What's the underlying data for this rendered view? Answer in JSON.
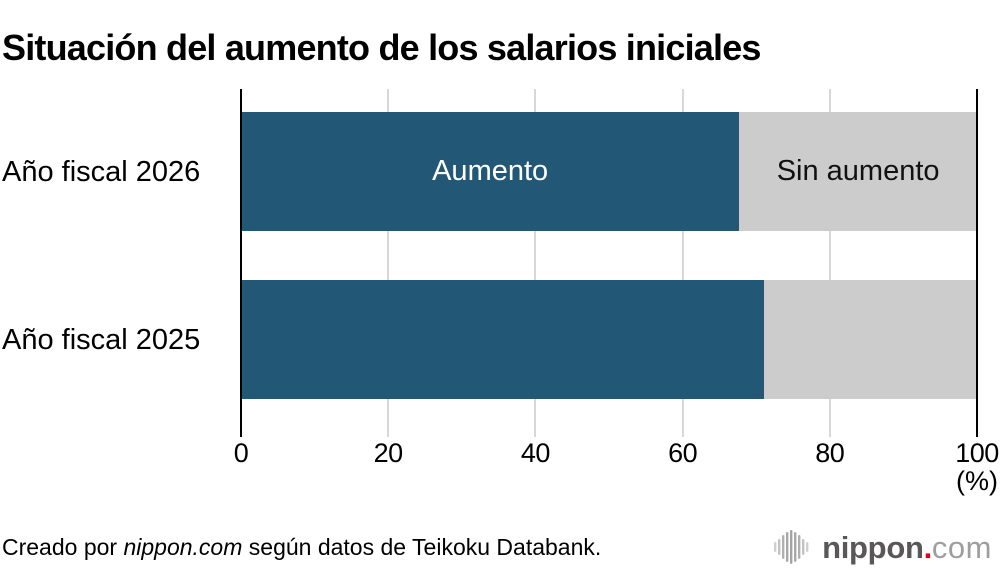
{
  "title": "Situación del aumento de los salarios iniciales",
  "chart_data": {
    "type": "bar",
    "orientation": "horizontal",
    "stacked": true,
    "categories": [
      "Año fiscal 2026",
      "Año fiscal 2025"
    ],
    "series": [
      {
        "name": "Aumento",
        "values": [
          67.7,
          71.0
        ],
        "color": "#225775",
        "label_color": "#ffffff"
      },
      {
        "name": "Sin aumento",
        "values": [
          32.3,
          29.0
        ],
        "color": "#cccccc",
        "label_color": "#111111"
      }
    ],
    "xlim": [
      0,
      100
    ],
    "xticks": [
      0,
      20,
      40,
      60,
      80,
      100
    ],
    "unit_label": "(%)",
    "grid": "vertical",
    "gridline_color": "#d8d8d8",
    "axis_edge_color": "#000000",
    "legend": "series names shown as labels inside first bar"
  },
  "footer": {
    "credit_prefix": "Creado por ",
    "credit_site": "nippon.com",
    "credit_suffix": " según datos de Teikoku Databank."
  },
  "logo": {
    "name": "nippon",
    "dot": ".",
    "tld": "com",
    "accent_color": "#e60012",
    "icon": "waveform-icon"
  }
}
